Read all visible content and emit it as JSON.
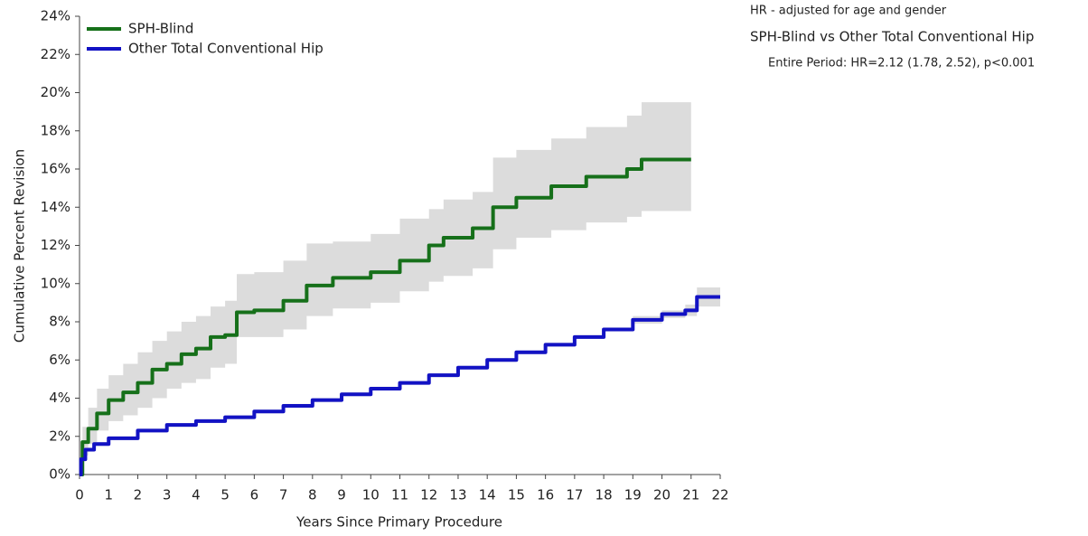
{
  "chart_data": {
    "type": "step-line",
    "ylabel": "Cumulative Percent Revision",
    "xlabel": "Years Since Primary Procedure",
    "xlim": [
      0,
      22
    ],
    "xticks": [
      0,
      1,
      2,
      3,
      4,
      5,
      6,
      7,
      8,
      9,
      10,
      11,
      12,
      13,
      14,
      15,
      16,
      17,
      18,
      19,
      20,
      21,
      22
    ],
    "ylim": [
      0,
      24
    ],
    "yticks": [
      {
        "value": 0,
        "label": "0%"
      },
      {
        "value": 2,
        "label": "2%"
      },
      {
        "value": 4,
        "label": "4%"
      },
      {
        "value": 6,
        "label": "6%"
      },
      {
        "value": 8,
        "label": "8%"
      },
      {
        "value": 10,
        "label": "10%"
      },
      {
        "value": 12,
        "label": "12%"
      },
      {
        "value": 14,
        "label": "14%"
      },
      {
        "value": 16,
        "label": "16%"
      },
      {
        "value": 18,
        "label": "18%"
      },
      {
        "value": 20,
        "label": "20%"
      },
      {
        "value": 22,
        "label": "22%"
      },
      {
        "value": 24,
        "label": "24%"
      }
    ],
    "band_color": "#dcdcdc",
    "legend": "upper left",
    "series": [
      {
        "name": "SPH-Blind",
        "color": "#16701a",
        "x": [
          0,
          0.1,
          0.3,
          0.6,
          1,
          1.5,
          2,
          2.5,
          3,
          3.5,
          4,
          4.5,
          5,
          5.4,
          6,
          7,
          7.8,
          8.7,
          10,
          11,
          12,
          12.5,
          13.5,
          14.2,
          15,
          16.2,
          17.4,
          18.8,
          19.3,
          21
        ],
        "values": [
          0,
          1.7,
          2.4,
          3.2,
          3.9,
          4.3,
          4.8,
          5.5,
          5.8,
          6.3,
          6.6,
          7.2,
          7.3,
          8.5,
          8.6,
          9.1,
          9.9,
          10.3,
          10.6,
          11.2,
          12.0,
          12.4,
          12.9,
          14.0,
          14.5,
          15.1,
          15.6,
          16.0,
          16.5,
          16.5
        ],
        "lower": [
          0,
          1.0,
          1.6,
          2.3,
          2.8,
          3.1,
          3.5,
          4.0,
          4.5,
          4.8,
          5.0,
          5.6,
          5.8,
          7.2,
          7.2,
          7.6,
          8.3,
          8.7,
          9.0,
          9.6,
          10.1,
          10.4,
          10.8,
          11.8,
          12.4,
          12.8,
          13.2,
          13.5,
          13.8,
          14.0
        ],
        "upper": [
          0,
          2.5,
          3.5,
          4.5,
          5.2,
          5.8,
          6.4,
          7.0,
          7.5,
          8.0,
          8.3,
          8.8,
          9.1,
          10.5,
          10.6,
          11.2,
          12.1,
          12.2,
          12.6,
          13.4,
          13.9,
          14.4,
          14.8,
          16.6,
          17.0,
          17.6,
          18.2,
          18.8,
          19.5,
          19.5
        ]
      },
      {
        "name": "Other Total Conventional Hip",
        "color": "#1212c4",
        "x": [
          0,
          0.05,
          0.2,
          0.5,
          1,
          2,
          3,
          4,
          5,
          6,
          7,
          8,
          9,
          10,
          11,
          12,
          13,
          14,
          15,
          16,
          17,
          18,
          19,
          20,
          20.8,
          21.2,
          22
        ],
        "values": [
          0,
          0.8,
          1.3,
          1.6,
          1.9,
          2.3,
          2.6,
          2.8,
          3.0,
          3.3,
          3.6,
          3.9,
          4.2,
          4.5,
          4.8,
          5.2,
          5.6,
          6.0,
          6.4,
          6.8,
          7.2,
          7.6,
          8.1,
          8.4,
          8.6,
          9.3,
          9.3
        ],
        "lower": [
          0,
          0.7,
          1.2,
          1.5,
          1.8,
          2.2,
          2.5,
          2.7,
          2.9,
          3.2,
          3.5,
          3.8,
          4.1,
          4.4,
          4.7,
          5.1,
          5.5,
          5.9,
          6.3,
          6.7,
          7.1,
          7.5,
          7.9,
          8.2,
          8.3,
          8.8,
          8.8
        ],
        "upper": [
          0,
          0.9,
          1.4,
          1.7,
          2.0,
          2.4,
          2.7,
          2.9,
          3.1,
          3.4,
          3.7,
          4.0,
          4.3,
          4.6,
          4.9,
          5.3,
          5.7,
          6.1,
          6.5,
          6.9,
          7.3,
          7.7,
          8.3,
          8.6,
          8.9,
          9.8,
          9.8
        ]
      }
    ],
    "annotations": [
      "HR - adjusted for age and gender",
      "SPH-Blind vs Other Total Conventional Hip",
      "Entire Period: HR=2.12 (1.78, 2.52), p<0.001"
    ]
  }
}
